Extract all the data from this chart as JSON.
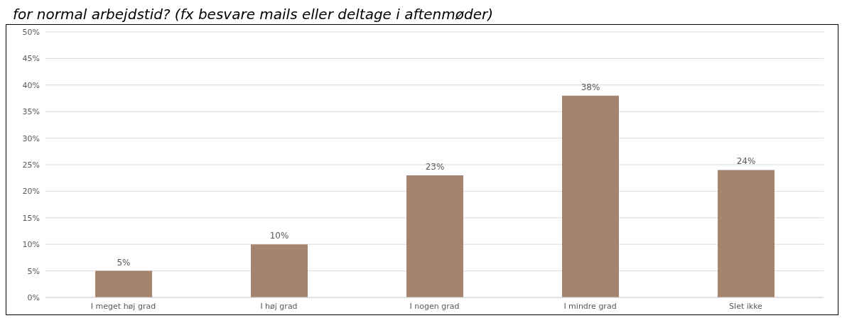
{
  "chart_data": {
    "type": "bar",
    "title": "for normal arbejdstid? (fx besvare mails eller deltage i aftenmøder)",
    "categories": [
      "I meget høj grad",
      "I høj grad",
      "I nogen grad",
      "I mindre grad",
      "Slet ikke"
    ],
    "values": [
      5,
      10,
      23,
      38,
      24
    ],
    "color": "#a5836f",
    "ylim": [
      0,
      50
    ],
    "yticks": [
      {
        "value": 0,
        "label": "0%"
      },
      {
        "value": 5,
        "label": "5%"
      },
      {
        "value": 10,
        "label": "10%"
      },
      {
        "value": 15,
        "label": "15%"
      },
      {
        "value": 20,
        "label": "20%"
      },
      {
        "value": 25,
        "label": "25%"
      },
      {
        "value": 30,
        "label": "30%"
      },
      {
        "value": 35,
        "label": "35%"
      },
      {
        "value": 40,
        "label": "40%"
      },
      {
        "value": 45,
        "label": "45%"
      },
      {
        "value": 50,
        "label": "50%"
      }
    ],
    "grid": "y",
    "data_labels": true,
    "value_labels": [
      "5%",
      "10%",
      "23%",
      "38%",
      "24%"
    ]
  }
}
